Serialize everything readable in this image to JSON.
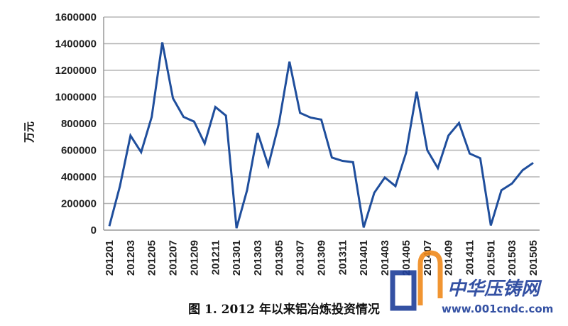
{
  "chart_data": {
    "type": "line",
    "title": "",
    "caption": "图 1. 2012 年以来铝冶炼投资情况",
    "xlabel": "",
    "ylabel": "万元",
    "ylim": [
      0,
      1600000
    ],
    "yticks": [
      0,
      200000,
      400000,
      600000,
      800000,
      1000000,
      1200000,
      1400000,
      1600000
    ],
    "ytick_labels": [
      "0",
      "200000",
      "400000",
      "600000",
      "800000",
      "1000000",
      "1200000",
      "1400000",
      "1600000"
    ],
    "grid": true,
    "legend": "none",
    "color": "#1f4e9c",
    "x": [
      "201201",
      "201202",
      "201203",
      "201204",
      "201205",
      "201206",
      "201207",
      "201208",
      "201209",
      "201210",
      "201211",
      "201212",
      "201301",
      "201302",
      "201303",
      "201304",
      "201305",
      "201306",
      "201307",
      "201308",
      "201309",
      "201310",
      "201311",
      "201312",
      "201401",
      "201402",
      "201403",
      "201404",
      "201405",
      "201406",
      "201407",
      "201408",
      "201409",
      "201410",
      "201411",
      "201412",
      "201501",
      "201502",
      "201503",
      "201504",
      "201505"
    ],
    "xtick_labels": [
      "201201",
      "201203",
      "201205",
      "201207",
      "201209",
      "201211",
      "201301",
      "201303",
      "201305",
      "201307",
      "201309",
      "201311",
      "201401",
      "201403",
      "201405",
      "201407",
      "201409",
      "201411",
      "201501",
      "201503",
      "201505"
    ],
    "series": [
      {
        "values": [
          30000,
          330000,
          710000,
          585000,
          850000,
          1410000,
          990000,
          850000,
          815000,
          650000,
          925000,
          860000,
          15000,
          300000,
          730000,
          485000,
          800000,
          1265000,
          880000,
          845000,
          830000,
          545000,
          520000,
          510000,
          20000,
          280000,
          395000,
          330000,
          580000,
          1040000,
          600000,
          465000,
          710000,
          805000,
          575000,
          540000,
          35000,
          300000,
          350000,
          450000,
          505000
        ]
      }
    ]
  },
  "watermark": {
    "name": "中华压铸网",
    "url": "www.001cndc.com",
    "orange": "#f08a1c",
    "blue": "#1f3f9a"
  }
}
